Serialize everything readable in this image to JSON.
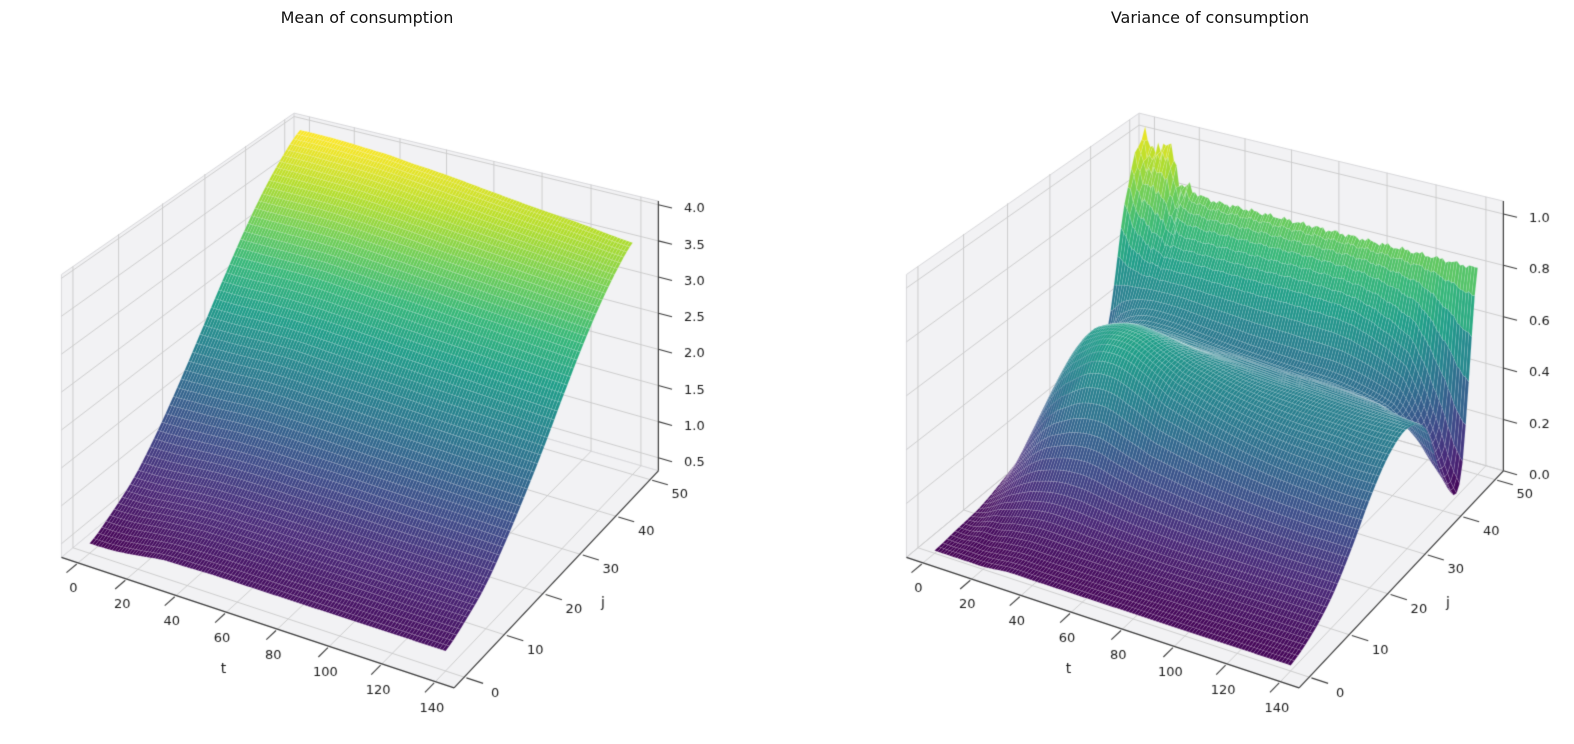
{
  "chart_data": [
    {
      "type": "surface3d",
      "title": "Mean of consumption",
      "xlabel": "t",
      "ylabel": "j",
      "x_range": [
        0,
        140
      ],
      "y_range": [
        0,
        50
      ],
      "z_axis_range": [
        0.32,
        4.05
      ],
      "x_ticks": [
        0,
        20,
        40,
        60,
        80,
        100,
        120,
        140
      ],
      "y_ticks": [
        0,
        10,
        20,
        30,
        40,
        50
      ],
      "z_ticks": [
        "0.5",
        "1.0",
        "1.5",
        "2.0",
        "2.5",
        "3.0",
        "3.5",
        "4.0"
      ],
      "colormap": "viridis",
      "legend": "none",
      "grid": true,
      "surface": {
        "t": [
          0,
          10,
          20,
          30,
          40,
          50,
          60,
          80,
          100,
          120,
          140
        ],
        "j": [
          0,
          5,
          10,
          15,
          20,
          25,
          30,
          35,
          40,
          45,
          50
        ],
        "z": [
          [
            0.45,
            0.46,
            0.5,
            0.55,
            0.56,
            0.57,
            0.57,
            0.57,
            0.57,
            0.57,
            0.57
          ],
          [
            0.62,
            0.63,
            0.67,
            0.7,
            0.72,
            0.72,
            0.72,
            0.71,
            0.71,
            0.7,
            0.7
          ],
          [
            0.85,
            0.86,
            0.89,
            0.92,
            0.93,
            0.93,
            0.93,
            0.92,
            0.91,
            0.9,
            0.89
          ],
          [
            1.2,
            1.21,
            1.23,
            1.25,
            1.26,
            1.26,
            1.25,
            1.24,
            1.22,
            1.21,
            1.19
          ],
          [
            1.62,
            1.63,
            1.64,
            1.66,
            1.66,
            1.65,
            1.64,
            1.61,
            1.59,
            1.56,
            1.54
          ],
          [
            2.08,
            2.08,
            2.09,
            2.1,
            2.1,
            2.08,
            2.06,
            2.03,
            1.99,
            1.96,
            1.92
          ],
          [
            2.55,
            2.55,
            2.56,
            2.56,
            2.55,
            2.53,
            2.51,
            2.46,
            2.42,
            2.37,
            2.33
          ],
          [
            3.0,
            3.0,
            3.0,
            3.0,
            2.99,
            2.96,
            2.93,
            2.88,
            2.82,
            2.77,
            2.72
          ],
          [
            3.4,
            3.4,
            3.4,
            3.39,
            3.37,
            3.34,
            3.31,
            3.24,
            3.18,
            3.12,
            3.06
          ],
          [
            3.72,
            3.72,
            3.71,
            3.7,
            3.68,
            3.65,
            3.61,
            3.54,
            3.47,
            3.4,
            3.33
          ],
          [
            3.95,
            3.95,
            3.94,
            3.92,
            3.9,
            3.86,
            3.83,
            3.75,
            3.67,
            3.6,
            3.52
          ]
        ]
      }
    },
    {
      "type": "surface3d",
      "title": "Variance of consumption",
      "xlabel": "t",
      "ylabel": "j",
      "x_range": [
        0,
        140
      ],
      "y_range": [
        0,
        50
      ],
      "z_axis_range": [
        0.0,
        1.05
      ],
      "x_ticks": [
        0,
        20,
        40,
        60,
        80,
        100,
        120,
        140
      ],
      "y_ticks": [
        0,
        10,
        20,
        30,
        40,
        50
      ],
      "z_ticks": [
        "0.0",
        "0.2",
        "0.4",
        "0.6",
        "0.8",
        "1.0"
      ],
      "colormap": "viridis",
      "legend": "none",
      "grid": true,
      "jitter": {
        "amplitude": 0.02
      },
      "surface": {
        "t": [
          0,
          5,
          10,
          15,
          20,
          30,
          40,
          50,
          60,
          80,
          100,
          120,
          130,
          140
        ],
        "j": [
          0,
          5,
          10,
          15,
          20,
          25,
          30,
          35,
          40,
          45,
          50
        ],
        "z": [
          [
            0.01,
            0.01,
            0.01,
            0.01,
            0.01,
            0.02,
            0.02,
            0.02,
            0.02,
            0.02,
            0.02,
            0.02,
            0.02,
            0.02
          ],
          [
            0.02,
            0.02,
            0.03,
            0.03,
            0.04,
            0.05,
            0.05,
            0.05,
            0.05,
            0.05,
            0.05,
            0.05,
            0.05,
            0.05
          ],
          [
            0.03,
            0.05,
            0.08,
            0.1,
            0.12,
            0.14,
            0.14,
            0.13,
            0.12,
            0.11,
            0.11,
            0.11,
            0.11,
            0.11
          ],
          [
            0.06,
            0.12,
            0.18,
            0.24,
            0.28,
            0.32,
            0.33,
            0.3,
            0.27,
            0.24,
            0.22,
            0.21,
            0.21,
            0.21
          ],
          [
            0.1,
            0.22,
            0.33,
            0.42,
            0.48,
            0.55,
            0.56,
            0.52,
            0.46,
            0.4,
            0.36,
            0.34,
            0.33,
            0.33
          ],
          [
            0.14,
            0.28,
            0.4,
            0.5,
            0.56,
            0.6,
            0.6,
            0.56,
            0.52,
            0.47,
            0.44,
            0.43,
            0.42,
            0.42
          ],
          [
            0.18,
            0.3,
            0.4,
            0.48,
            0.52,
            0.55,
            0.54,
            0.52,
            0.5,
            0.47,
            0.46,
            0.45,
            0.45,
            0.45
          ],
          [
            0.22,
            0.32,
            0.38,
            0.42,
            0.44,
            0.45,
            0.45,
            0.44,
            0.44,
            0.43,
            0.43,
            0.42,
            0.4,
            0.38
          ],
          [
            0.3,
            0.38,
            0.42,
            0.44,
            0.45,
            0.45,
            0.44,
            0.43,
            0.42,
            0.41,
            0.4,
            0.35,
            0.25,
            0.12
          ],
          [
            0.8,
            0.7,
            0.66,
            0.63,
            0.62,
            0.62,
            0.62,
            0.62,
            0.62,
            0.62,
            0.6,
            0.5,
            0.3,
            0.06
          ],
          [
            1.02,
            0.94,
            1.0,
            0.86,
            0.82,
            0.8,
            0.8,
            0.8,
            0.8,
            0.8,
            0.8,
            0.8,
            0.8,
            0.8
          ]
        ]
      }
    }
  ],
  "style": {
    "background": "#ffffff",
    "pane_color": "#f2f2f4",
    "pane_edge_color": "#d9d9dc",
    "grid_color": "#cacaca",
    "axis_color": "#3d3d3d",
    "text_color": "#1a1a1a",
    "mesh_line_color": "rgba(255,255,255,0.25)",
    "viridis_stops": [
      "#440154",
      "#482878",
      "#3e4a89",
      "#31688e",
      "#26828e",
      "#1f9e89",
      "#35b779",
      "#6ece58",
      "#b5de2b",
      "#fde725"
    ]
  }
}
